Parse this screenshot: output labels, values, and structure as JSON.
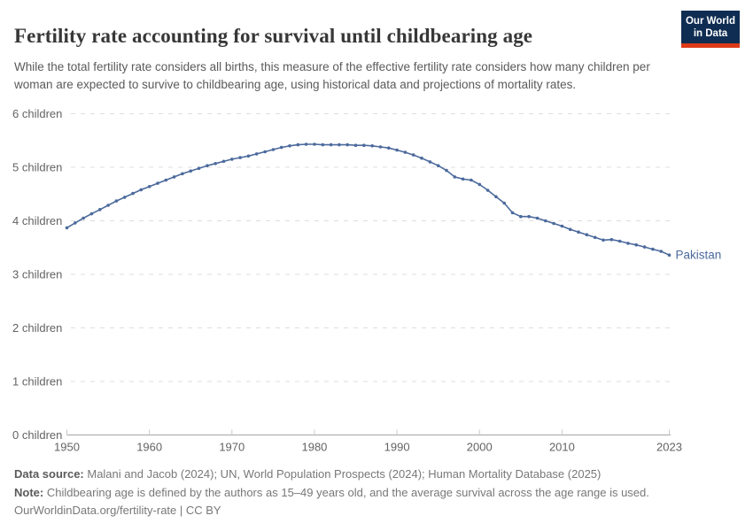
{
  "header": {
    "title": "Fertility rate accounting for survival until childbearing age",
    "subtitle": "While the total fertility rate considers all births, this measure of the effective fertility rate considers how many children per woman are expected to survive to childbearing age, using historical data and projections of mortality rates.",
    "logo": {
      "line1": "Our World",
      "line2": "in Data",
      "bg_color": "#0f2d52",
      "accent_color": "#dc3a18"
    }
  },
  "chart_data": {
    "type": "line",
    "title": "Fertility rate accounting for survival until childbearing age",
    "xlabel": "",
    "ylabel": "",
    "xlim": [
      1950,
      2023
    ],
    "ylim": [
      0,
      6
    ],
    "grid": "horizontal-dashed",
    "legend_position": "end-of-line-label",
    "x_ticks": [
      1950,
      1960,
      1970,
      1980,
      1990,
      2000,
      2010,
      2023
    ],
    "y_ticks": [
      {
        "value": 0,
        "label": "0 children"
      },
      {
        "value": 1,
        "label": "1 children"
      },
      {
        "value": 2,
        "label": "2 children"
      },
      {
        "value": 3,
        "label": "3 children"
      },
      {
        "value": 4,
        "label": "4 children"
      },
      {
        "value": 5,
        "label": "5 children"
      },
      {
        "value": 6,
        "label": "6 children"
      }
    ],
    "series": [
      {
        "name": "Pakistan",
        "color": "#4c6a9c",
        "x": [
          1950,
          1951,
          1952,
          1953,
          1954,
          1955,
          1956,
          1957,
          1958,
          1959,
          1960,
          1961,
          1962,
          1963,
          1964,
          1965,
          1966,
          1967,
          1968,
          1969,
          1970,
          1971,
          1972,
          1973,
          1974,
          1975,
          1976,
          1977,
          1978,
          1979,
          1980,
          1981,
          1982,
          1983,
          1984,
          1985,
          1986,
          1987,
          1988,
          1989,
          1990,
          1991,
          1992,
          1993,
          1994,
          1995,
          1996,
          1997,
          1998,
          1999,
          2000,
          2001,
          2002,
          2003,
          2004,
          2005,
          2006,
          2007,
          2008,
          2009,
          2010,
          2011,
          2012,
          2013,
          2014,
          2015,
          2016,
          2017,
          2018,
          2019,
          2020,
          2021,
          2022,
          2023
        ],
        "values": [
          3.87,
          3.96,
          4.05,
          4.13,
          4.21,
          4.29,
          4.37,
          4.44,
          4.51,
          4.58,
          4.64,
          4.7,
          4.76,
          4.82,
          4.88,
          4.93,
          4.98,
          5.03,
          5.07,
          5.11,
          5.15,
          5.18,
          5.21,
          5.25,
          5.29,
          5.33,
          5.37,
          5.4,
          5.42,
          5.43,
          5.43,
          5.42,
          5.42,
          5.42,
          5.42,
          5.41,
          5.41,
          5.4,
          5.38,
          5.36,
          5.32,
          5.28,
          5.23,
          5.17,
          5.1,
          5.03,
          4.94,
          4.82,
          4.78,
          4.76,
          4.68,
          4.57,
          4.45,
          4.33,
          4.15,
          4.08,
          4.08,
          4.05,
          4.0,
          3.95,
          3.9,
          3.84,
          3.79,
          3.74,
          3.69,
          3.64,
          3.65,
          3.62,
          3.58,
          3.55,
          3.51,
          3.47,
          3.43,
          3.36
        ]
      }
    ],
    "colors": {
      "gridline": "#dedede",
      "axis": "#a5a5a5",
      "tick": "#cacaca",
      "tick_label": "#636363"
    }
  },
  "footer": {
    "data_source_label": "Data source:",
    "data_source_text": " Malani and Jacob (2024); UN, World Population Prospects (2024); Human Mortality Database (2025)",
    "note_label": "Note:",
    "note_text": " Childbearing age is defined by the authors as 15–49 years old, and the average survival across the age range is used.",
    "link": "OurWorldinData.org/fertility-rate | CC BY"
  }
}
